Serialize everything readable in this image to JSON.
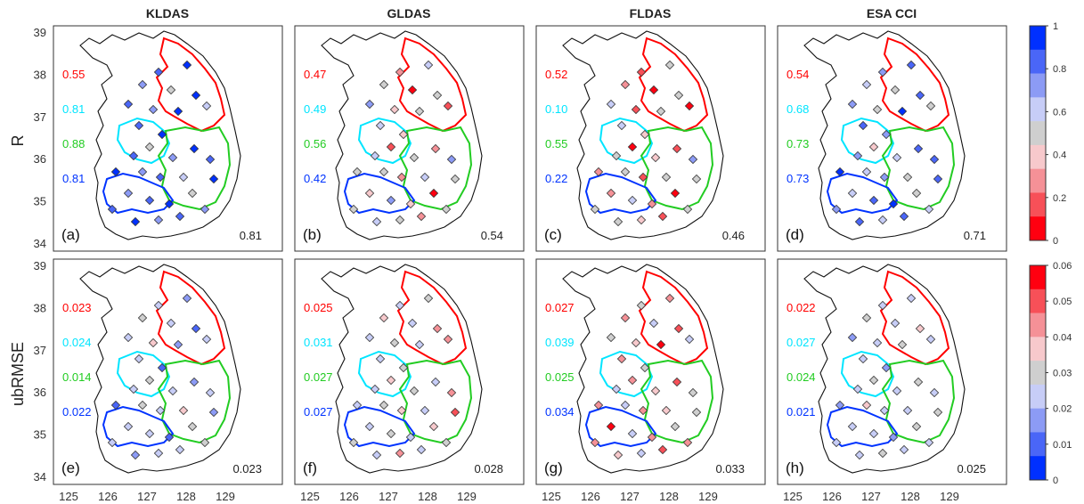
{
  "columns": [
    "KLDAS",
    "GLDAS",
    "FLDAS",
    "ESA CCI"
  ],
  "rows": [
    {
      "label": "R",
      "scale": {
        "min": 0,
        "max": 1,
        "ticks": [
          "1",
          "0.8",
          "0.6",
          "0.4",
          "0.2",
          "0"
        ]
      },
      "panels": [
        {
          "letter": "(a)",
          "overall": "0.81",
          "regions": [
            "0.55",
            "0.81",
            "0.88",
            "0.81"
          ]
        },
        {
          "letter": "(b)",
          "overall": "0.54",
          "regions": [
            "0.47",
            "0.49",
            "0.56",
            "0.42"
          ]
        },
        {
          "letter": "(c)",
          "overall": "0.46",
          "regions": [
            "0.52",
            "0.10",
            "0.55",
            "0.22"
          ]
        },
        {
          "letter": "(d)",
          "overall": "0.71",
          "regions": [
            "0.54",
            "0.68",
            "0.73",
            "0.73"
          ]
        }
      ]
    },
    {
      "label": "ubRMSE",
      "scale": {
        "min": 0,
        "max": 0.06,
        "ticks": [
          "0.06",
          "0.05",
          "0.04",
          "0.03",
          "0.02",
          "0.01",
          "0"
        ]
      },
      "panels": [
        {
          "letter": "(e)",
          "overall": "0.023",
          "regions": [
            "0.023",
            "0.024",
            "0.014",
            "0.022"
          ]
        },
        {
          "letter": "(f)",
          "overall": "0.028",
          "regions": [
            "0.025",
            "0.031",
            "0.027",
            "0.027"
          ]
        },
        {
          "letter": "(g)",
          "overall": "0.033",
          "regions": [
            "0.027",
            "0.039",
            "0.025",
            "0.034"
          ]
        },
        {
          "letter": "(h)",
          "overall": "0.025",
          "regions": [
            "0.022",
            "0.027",
            "0.024",
            "0.021"
          ]
        }
      ]
    }
  ],
  "region_colors": [
    "#ff0000",
    "#00e5ff",
    "#22cc22",
    "#0033ff"
  ],
  "lat_ticks": [
    "39",
    "38",
    "37",
    "36",
    "35",
    "34"
  ],
  "lon_ticks": [
    "125",
    "126",
    "127",
    "128",
    "129"
  ],
  "colorbar_R": [
    "#0030ff",
    "#4a66f7",
    "#8c9bf5",
    "#c7cdf7",
    "#cfcfcf",
    "#f7c9cc",
    "#f59197",
    "#f75058",
    "#ff0010"
  ],
  "colorbar_ubRMSE": [
    "#ff0010",
    "#f75058",
    "#f59197",
    "#f7c9cc",
    "#cfcfcf",
    "#c7cdf7",
    "#8c9bf5",
    "#4a66f7",
    "#0030ff"
  ],
  "station_values": {
    "R": [
      [
        0.85,
        0.9,
        0.7,
        0.55,
        0.9,
        0.8,
        0.75,
        0.95,
        0.6,
        0.85,
        0.9,
        0.5,
        0.8,
        0.7,
        0.9,
        0.85,
        0.95,
        0.75,
        0.8,
        0.6,
        0.9,
        0.7,
        0.85,
        0.95,
        0.5,
        0.8,
        0.9,
        0.75,
        0.85,
        0.7
      ],
      [
        0.3,
        0.6,
        0.45,
        0.1,
        0.55,
        0.7,
        0.35,
        0.5,
        0.2,
        0.65,
        0.4,
        0.15,
        0.6,
        0.5,
        0.3,
        0.75,
        0.45,
        0.55,
        0.25,
        0.6,
        0.5,
        0.35,
        0.7,
        0.4,
        0.1,
        0.55,
        0.65,
        0.45,
        0.3,
        0.5
      ],
      [
        0.2,
        0.5,
        0.3,
        0.05,
        0.55,
        0.6,
        0.15,
        0.45,
        0.1,
        0.6,
        0.35,
        0.1,
        0.5,
        0.4,
        0.2,
        0.7,
        0.3,
        0.55,
        0.15,
        0.5,
        0.45,
        0.25,
        0.6,
        0.3,
        0.05,
        0.5,
        0.55,
        0.35,
        0.2,
        0.45
      ],
      [
        0.7,
        0.8,
        0.6,
        0.45,
        0.85,
        0.75,
        0.55,
        0.9,
        0.5,
        0.8,
        0.7,
        0.4,
        0.75,
        0.65,
        0.85,
        0.8,
        0.9,
        0.6,
        0.7,
        0.5,
        0.85,
        0.6,
        0.8,
        0.9,
        0.45,
        0.75,
        0.85,
        0.65,
        0.8,
        0.6
      ]
    ],
    "ubRMSE": [
      [
        0.02,
        0.015,
        0.03,
        0.025,
        0.01,
        0.02,
        0.035,
        0.015,
        0.025,
        0.02,
        0.01,
        0.03,
        0.02,
        0.025,
        0.015,
        0.02,
        0.01,
        0.03,
        0.02,
        0.035,
        0.015,
        0.025,
        0.02,
        0.01,
        0.03,
        0.02,
        0.015,
        0.025,
        0.02,
        0.03
      ],
      [
        0.025,
        0.03,
        0.035,
        0.02,
        0.04,
        0.025,
        0.03,
        0.02,
        0.045,
        0.025,
        0.03,
        0.035,
        0.02,
        0.03,
        0.025,
        0.04,
        0.02,
        0.03,
        0.035,
        0.025,
        0.05,
        0.02,
        0.03,
        0.025,
        0.035,
        0.03,
        0.02,
        0.04,
        0.025,
        0.03
      ],
      [
        0.03,
        0.04,
        0.045,
        0.025,
        0.05,
        0.03,
        0.035,
        0.055,
        0.02,
        0.04,
        0.03,
        0.045,
        0.025,
        0.035,
        0.05,
        0.03,
        0.04,
        0.025,
        0.045,
        0.035,
        0.03,
        0.055,
        0.025,
        0.04,
        0.03,
        0.045,
        0.035,
        0.025,
        0.05,
        0.04
      ],
      [
        0.02,
        0.025,
        0.03,
        0.02,
        0.035,
        0.015,
        0.025,
        0.03,
        0.02,
        0.025,
        0.015,
        0.03,
        0.02,
        0.025,
        0.03,
        0.02,
        0.015,
        0.035,
        0.025,
        0.02,
        0.03,
        0.02,
        0.025,
        0.015,
        0.03,
        0.025,
        0.02,
        0.03,
        0.025,
        0.02
      ]
    ]
  }
}
